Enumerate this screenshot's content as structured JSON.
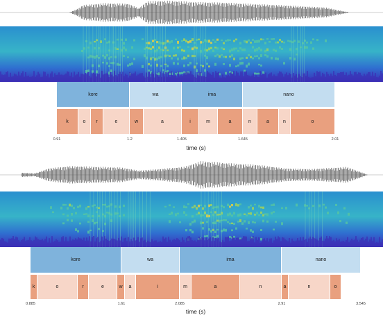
{
  "colors": {
    "word_dark": "#7fb3dc",
    "word_light": "#c3ddf0",
    "phone_dark": "#e9a07f",
    "phone_light": "#f7d6c8",
    "waveform": "#555555",
    "baseline": "#9a9a9a"
  },
  "panels": [
    {
      "axis_title": "time (s)",
      "ticks": [
        "0.91",
        "1.2",
        "1.405",
        "1.645",
        "2.01"
      ],
      "words": [
        {
          "label": "kore",
          "shade": "dark"
        },
        {
          "label": "wa",
          "shade": "light"
        },
        {
          "label": "ima",
          "shade": "dark"
        },
        {
          "label": "nano",
          "shade": "light"
        }
      ],
      "phones": [
        {
          "label": "k",
          "shade": "dark"
        },
        {
          "label": "o",
          "shade": "light"
        },
        {
          "label": "r",
          "shade": "dark"
        },
        {
          "label": "e",
          "shade": "light"
        },
        {
          "label": "w",
          "shade": "dark"
        },
        {
          "label": "a",
          "shade": "light"
        },
        {
          "label": "i",
          "shade": "dark"
        },
        {
          "label": "m",
          "shade": "light"
        },
        {
          "label": "a",
          "shade": "dark"
        },
        {
          "label": "n",
          "shade": "light"
        },
        {
          "label": "a",
          "shade": "dark"
        },
        {
          "label": "n",
          "shade": "light"
        },
        {
          "label": "o",
          "shade": "dark"
        }
      ]
    },
    {
      "axis_title": "time (s)",
      "ticks": [
        "0.885",
        "1.61",
        "2.085",
        "2.91",
        "3.545"
      ],
      "words": [
        {
          "label": "kore",
          "shade": "dark"
        },
        {
          "label": "wa",
          "shade": "light"
        },
        {
          "label": "ima",
          "shade": "dark"
        },
        {
          "label": "nano",
          "shade": "light"
        }
      ],
      "phones": [
        {
          "label": "k",
          "shade": "dark"
        },
        {
          "label": "o",
          "shade": "light"
        },
        {
          "label": "r",
          "shade": "dark"
        },
        {
          "label": "e",
          "shade": "light"
        },
        {
          "label": "w",
          "shade": "dark"
        },
        {
          "label": "a",
          "shade": "light"
        },
        {
          "label": "i",
          "shade": "dark"
        },
        {
          "label": "m",
          "shade": "light"
        },
        {
          "label": "a",
          "shade": "dark"
        },
        {
          "label": "n",
          "shade": "light"
        },
        {
          "label": "a",
          "shade": "dark"
        },
        {
          "label": "n",
          "shade": "light"
        },
        {
          "label": "o",
          "shade": "dark"
        }
      ]
    }
  ]
}
